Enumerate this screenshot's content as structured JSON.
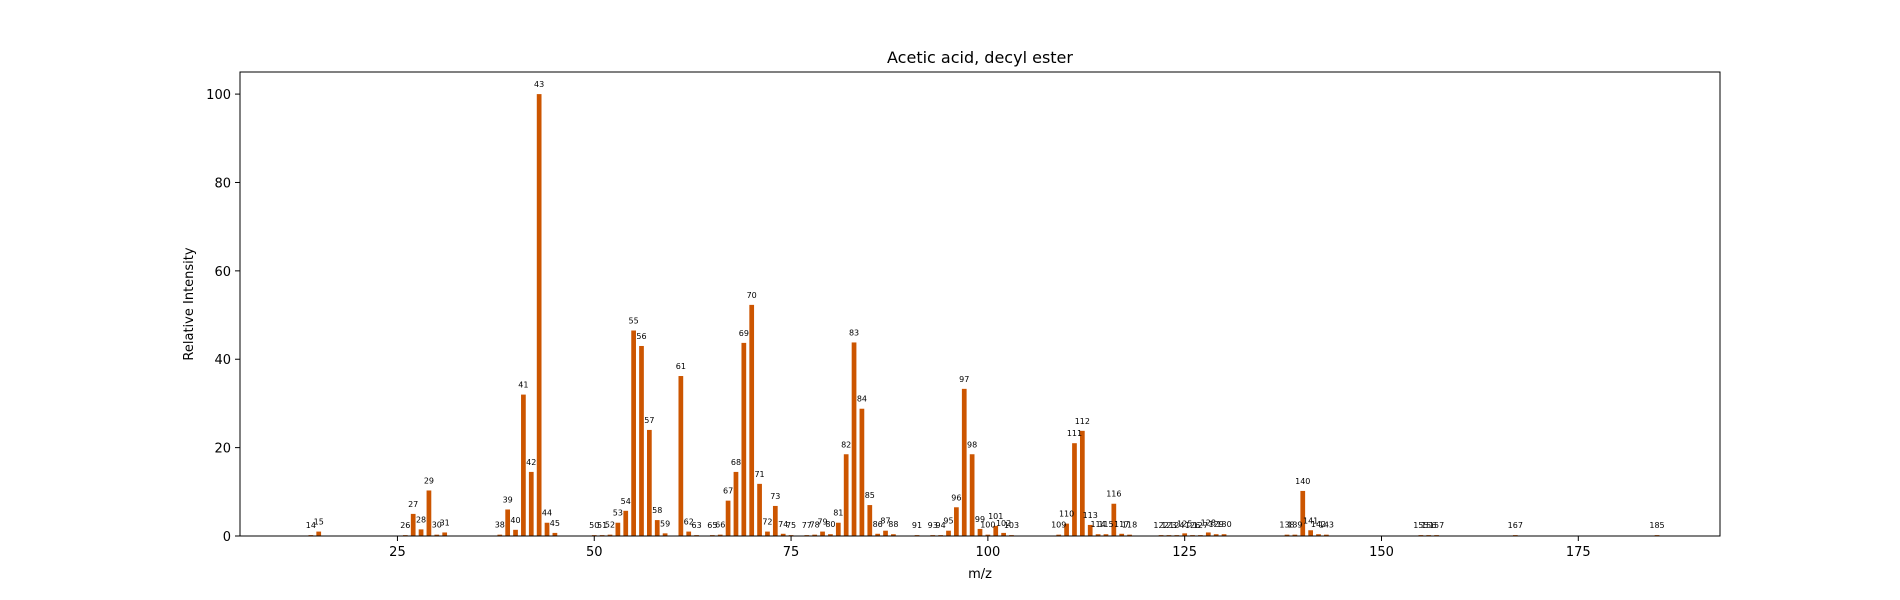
{
  "chart_data": {
    "type": "bar",
    "title": "Acetic acid, decyl ester",
    "xlabel": "m/z",
    "ylabel": "Relative Intensity",
    "xlim": [
      5,
      193
    ],
    "ylim": [
      0,
      105
    ],
    "xticks": [
      25,
      50,
      75,
      100,
      125,
      150,
      175
    ],
    "yticks": [
      0,
      20,
      40,
      60,
      80,
      100
    ],
    "bar_color": "#cc5500",
    "grid": false,
    "legend": "none",
    "x": [
      14,
      15,
      26,
      27,
      28,
      29,
      30,
      31,
      38,
      39,
      40,
      41,
      42,
      43,
      44,
      45,
      50,
      51,
      52,
      53,
      54,
      55,
      56,
      57,
      58,
      59,
      61,
      62,
      63,
      65,
      66,
      67,
      68,
      69,
      70,
      71,
      72,
      73,
      74,
      75,
      77,
      78,
      79,
      80,
      81,
      82,
      83,
      84,
      85,
      86,
      87,
      88,
      91,
      93,
      94,
      95,
      96,
      97,
      98,
      99,
      100,
      101,
      102,
      103,
      109,
      110,
      111,
      112,
      113,
      114,
      115,
      116,
      117,
      118,
      122,
      123,
      124,
      125,
      126,
      127,
      128,
      129,
      130,
      138,
      139,
      140,
      141,
      142,
      143,
      155,
      156,
      157,
      167,
      185
    ],
    "values": [
      0.2,
      1.0,
      0.2,
      5.0,
      1.5,
      10.3,
      0.3,
      0.8,
      0.3,
      6.0,
      1.4,
      32.0,
      14.5,
      100.0,
      3.0,
      0.7,
      0.2,
      0.2,
      0.3,
      3.0,
      5.7,
      46.5,
      43.0,
      24.0,
      3.6,
      0.6,
      36.2,
      1.0,
      0.2,
      0.2,
      0.3,
      8.0,
      14.5,
      43.7,
      52.3,
      11.8,
      1.0,
      6.8,
      0.5,
      0.2,
      0.2,
      0.3,
      1.0,
      0.4,
      3.0,
      18.5,
      43.8,
      28.8,
      7.0,
      0.5,
      1.2,
      0.4,
      0.2,
      0.2,
      0.2,
      1.2,
      6.5,
      33.3,
      18.5,
      1.6,
      0.3,
      2.3,
      0.7,
      0.2,
      0.3,
      2.8,
      21.0,
      23.8,
      2.5,
      0.4,
      0.4,
      7.3,
      0.5,
      0.3,
      0.2,
      0.2,
      0.2,
      0.6,
      0.2,
      0.2,
      0.8,
      0.4,
      0.4,
      0.3,
      0.3,
      10.2,
      1.3,
      0.4,
      0.3,
      0.2,
      0.2,
      0.2,
      0.2,
      0.2
    ],
    "labels": [
      "14",
      "15",
      "26",
      "27",
      "28",
      "29",
      "30",
      "31",
      "38",
      "39",
      "40",
      "41",
      "42",
      "43",
      "44",
      "45",
      "50",
      "51",
      "52",
      "53",
      "54",
      "55",
      "56",
      "57",
      "58",
      "59",
      "61",
      "62",
      "63",
      "65",
      "66",
      "67",
      "68",
      "69",
      "70",
      "71",
      "72",
      "73",
      "74",
      "75",
      "77",
      "78",
      "79",
      "80",
      "81",
      "82",
      "83",
      "84",
      "85",
      "86",
      "87",
      "88",
      "91",
      "93",
      "94",
      "95",
      "96",
      "97",
      "98",
      "99",
      "100",
      "101",
      "102",
      "103",
      "109",
      "110",
      "111",
      "112",
      "113",
      "114",
      "115",
      "116",
      "117",
      "118",
      "122",
      "123",
      "124",
      "125",
      "126",
      "127",
      "128",
      "129",
      "130",
      "138",
      "139",
      "140",
      "141",
      "142",
      "143",
      "155",
      "156",
      "157",
      "167",
      "185"
    ]
  }
}
